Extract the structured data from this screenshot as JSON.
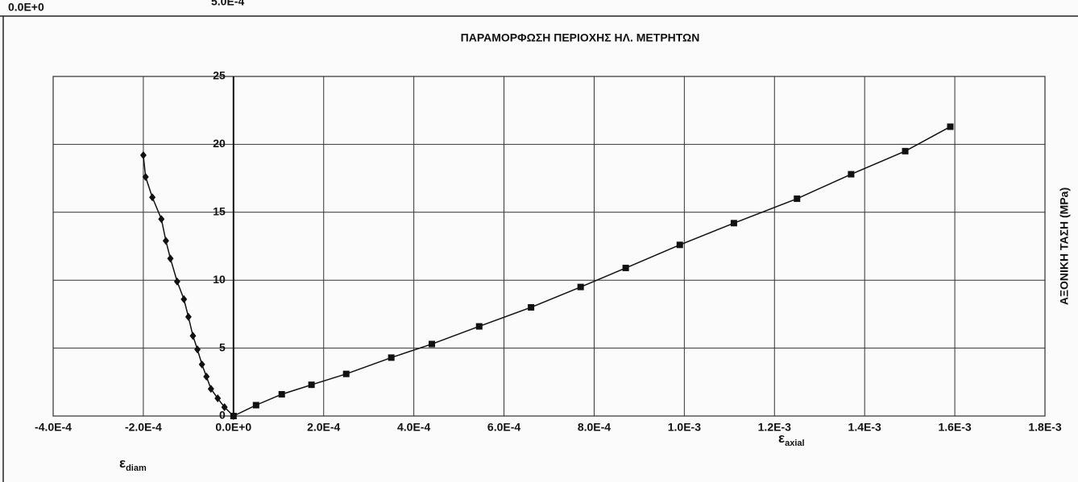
{
  "chart_data": {
    "type": "line",
    "title": "ΠΑΡΑΜΟΡΦΩΣΗ ΠΕΡΙΟΧΗΣ ΗΛ. ΜΕΤΡΗΤΩΝ",
    "top_fragments": [
      "0.0E+0",
      "5.0E-4"
    ],
    "y_label": "ΑΞΟΝΙΚΗ ΤΑΣΗ (MPa)",
    "x_labels": [
      {
        "symbol": "ε",
        "sub": "diam"
      },
      {
        "symbol": "ε",
        "sub": "axial"
      }
    ],
    "xlim": [
      -0.0004,
      0.0018
    ],
    "ylim": [
      0,
      25
    ],
    "xticks": [
      {
        "value": -0.0004,
        "label": "-4.0E-4"
      },
      {
        "value": -0.0002,
        "label": "-2.0E-4"
      },
      {
        "value": 0,
        "label": "0.0E+0"
      },
      {
        "value": 0.0002,
        "label": "2.0E-4"
      },
      {
        "value": 0.0004,
        "label": "4.0E-4"
      },
      {
        "value": 0.0006,
        "label": "6.0E-4"
      },
      {
        "value": 0.0008,
        "label": "8.0E-4"
      },
      {
        "value": 0.001,
        "label": "1.0E-3"
      },
      {
        "value": 0.0012,
        "label": "1.2E-3"
      },
      {
        "value": 0.0014,
        "label": "1.4E-3"
      },
      {
        "value": 0.0016,
        "label": "1.6E-3"
      },
      {
        "value": 0.0018,
        "label": "1.8E-3"
      }
    ],
    "yticks": [
      0,
      5,
      10,
      15,
      20,
      25
    ],
    "grid": true,
    "series": [
      {
        "marker": "diamond",
        "color": "#111111",
        "x": [
          -0.0002,
          -0.000195,
          -0.00018,
          -0.00016,
          -0.00015,
          -0.00014,
          -0.000125,
          -0.00011,
          -0.0001,
          -9e-05,
          -8e-05,
          -7e-05,
          -6e-05,
          -5e-05,
          -3.5e-05,
          -2e-05,
          0
        ],
        "values": [
          19.2,
          17.6,
          16.1,
          14.5,
          12.9,
          11.6,
          9.9,
          8.6,
          7.3,
          5.9,
          4.9,
          3.8,
          2.9,
          2.0,
          1.3,
          0.65,
          0
        ]
      },
      {
        "marker": "square",
        "color": "#111111",
        "x": [
          0,
          5e-05,
          0.000107,
          0.000173,
          0.00025,
          0.00035,
          0.00044,
          0.000545,
          0.00066,
          0.00077,
          0.00087,
          0.00099,
          0.00111,
          0.00125,
          0.00137,
          0.00149,
          0.00159
        ],
        "values": [
          0,
          0.8,
          1.6,
          2.3,
          3.1,
          4.3,
          5.3,
          6.6,
          8.0,
          9.5,
          10.9,
          12.6,
          14.2,
          16.0,
          17.8,
          19.5,
          21.3
        ]
      }
    ]
  }
}
